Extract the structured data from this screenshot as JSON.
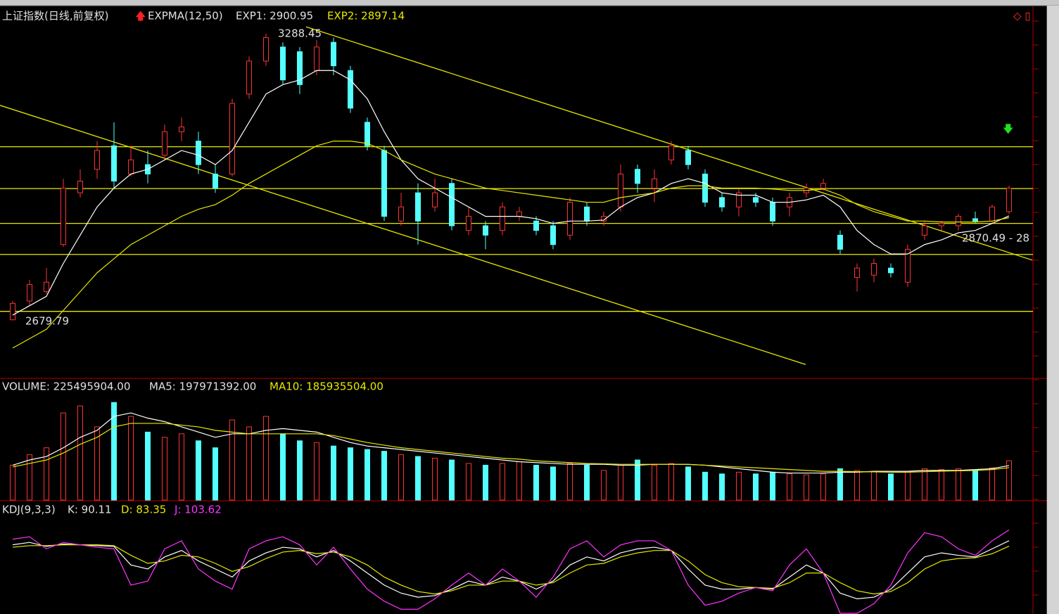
{
  "chart_data": [
    {
      "type": "candlestick",
      "title": "上证指数(日线,前复权)",
      "indicator": "EXPMA(12,50)",
      "legend": [
        "EXP1: 2900.95",
        "EXP2: 2897.14"
      ],
      "annotations": [
        "3288.45",
        "2679.79",
        "2870.49 - 28"
      ],
      "up_color": "#ff3232",
      "down_color": "#54ffff",
      "ylim": [
        2560,
        3345
      ],
      "open": [
        2680,
        2720,
        2740,
        2840,
        2950,
        3000,
        3050,
        2990,
        3010,
        3030,
        3080,
        3060,
        2990,
        2990,
        3160,
        3230,
        3260,
        3250,
        3210,
        3270,
        3210,
        3100,
        3040,
        2890,
        2950,
        2920,
        2970,
        2870,
        2880,
        2870,
        2900,
        2890,
        2880,
        2860,
        2920,
        2890,
        2920,
        3000,
        2960,
        3020,
        3040,
        2990,
        2940,
        2920,
        2940,
        2930,
        2920,
        2950,
        2960,
        2860,
        2770,
        2775,
        2790,
        2760,
        2860,
        2880,
        2880,
        2895,
        2890,
        2910
      ],
      "close": [
        2715,
        2755,
        2760,
        2960,
        2975,
        3040,
        2975,
        3020,
        2990,
        3080,
        3090,
        3010,
        2960,
        3140,
        3230,
        3280,
        3190,
        3180,
        3260,
        3220,
        3130,
        3050,
        2900,
        2920,
        2890,
        2950,
        2880,
        2900,
        2860,
        2920,
        2910,
        2870,
        2840,
        2930,
        2890,
        2900,
        2990,
        2970,
        2980,
        3050,
        3010,
        2930,
        2920,
        2950,
        2930,
        2890,
        2940,
        2960,
        2970,
        2830,
        2790,
        2800,
        2780,
        2830,
        2880,
        2885,
        2900,
        2890,
        2920,
        2960
      ],
      "high": [
        2720,
        2765,
        2790,
        2980,
        3000,
        3060,
        3100,
        3050,
        3040,
        3095,
        3110,
        3080,
        3010,
        3150,
        3240,
        3288.45,
        3270,
        3260,
        3275,
        3280,
        3220,
        3110,
        3050,
        2950,
        2970,
        2980,
        2980,
        2920,
        2890,
        2930,
        2920,
        2900,
        2890,
        2940,
        2930,
        2910,
        3010,
        3010,
        3000,
        3060,
        3050,
        3000,
        2950,
        2960,
        2950,
        2940,
        2950,
        2970,
        2980,
        2870,
        2800,
        2810,
        2800,
        2840,
        2890,
        2890,
        2905,
        2910,
        2925,
        2965
      ],
      "low": [
        2679.79,
        2710,
        2735,
        2835,
        2940,
        2980,
        2960,
        2985,
        2970,
        3020,
        3060,
        2990,
        2950,
        2985,
        3150,
        3220,
        3180,
        3160,
        3200,
        3200,
        3120,
        3040,
        2890,
        2880,
        2840,
        2910,
        2870,
        2860,
        2830,
        2860,
        2890,
        2860,
        2830,
        2850,
        2880,
        2880,
        2910,
        2950,
        2930,
        3010,
        3000,
        2920,
        2910,
        2900,
        2920,
        2880,
        2900,
        2940,
        2955,
        2820,
        2740,
        2760,
        2770,
        2750,
        2850,
        2870,
        2870,
        2885,
        2885,
        2905
      ],
      "series": [
        {
          "name": "EXP1",
          "color": "#ffffff",
          "values": [
            2690,
            2710,
            2730,
            2800,
            2860,
            2920,
            2960,
            2990,
            3000,
            3020,
            3040,
            3030,
            3010,
            3040,
            3100,
            3160,
            3180,
            3190,
            3210,
            3210,
            3190,
            3150,
            3080,
            3020,
            2980,
            2960,
            2940,
            2920,
            2900,
            2900,
            2900,
            2895,
            2885,
            2890,
            2890,
            2892,
            2920,
            2940,
            2950,
            2970,
            2980,
            2970,
            2950,
            2945,
            2945,
            2930,
            2930,
            2935,
            2945,
            2920,
            2870,
            2840,
            2820,
            2820,
            2840,
            2850,
            2865,
            2870,
            2885,
            2900.95
          ]
        },
        {
          "name": "EXP2",
          "color": "#e8e800",
          "values": [
            2620,
            2640,
            2660,
            2700,
            2740,
            2780,
            2810,
            2840,
            2860,
            2880,
            2900,
            2915,
            2925,
            2945,
            2970,
            2990,
            3010,
            3030,
            3050,
            3060,
            3060,
            3055,
            3040,
            3020,
            3005,
            2990,
            2980,
            2970,
            2960,
            2955,
            2950,
            2945,
            2940,
            2935,
            2930,
            2930,
            2940,
            2945,
            2950,
            2960,
            2965,
            2965,
            2960,
            2960,
            2960,
            2958,
            2955,
            2955,
            2958,
            2945,
            2925,
            2910,
            2900,
            2890,
            2890,
            2888,
            2888,
            2888,
            2890,
            2897.14
          ]
        }
      ],
      "hlines": [
        3048,
        2959,
        2885,
        2819,
        2698
      ],
      "trendlines": [
        [
          [
            -0.75,
            3136
          ],
          [
            46.96,
            2585
          ]
        ],
        [
          [
            17.375,
            3303
          ],
          [
            60.375,
            2807
          ]
        ]
      ]
    },
    {
      "type": "bar",
      "title": "VOLUME: 225495904.00",
      "legend": [
        "MA5: 197971392.00",
        "MA10: 185935504.00"
      ],
      "ylim": [
        0,
        690000000
      ],
      "values": [
        200000000,
        260000000,
        300000000,
        500000000,
        540000000,
        420000000,
        560000000,
        480000000,
        390000000,
        360000000,
        380000000,
        340000000,
        300000000,
        460000000,
        420000000,
        480000000,
        380000000,
        340000000,
        330000000,
        310000000,
        300000000,
        290000000,
        280000000,
        260000000,
        250000000,
        240000000,
        230000000,
        210000000,
        200000000,
        210000000,
        220000000,
        200000000,
        190000000,
        210000000,
        200000000,
        170000000,
        200000000,
        230000000,
        200000000,
        210000000,
        190000000,
        160000000,
        150000000,
        160000000,
        150000000,
        160000000,
        150000000,
        145000000,
        150000000,
        180000000,
        170000000,
        165000000,
        150000000,
        165000000,
        180000000,
        175000000,
        180000000,
        170000000,
        185000000,
        225495904
      ],
      "series": [
        {
          "name": "MA5",
          "color": "#ffffff",
          "values": [
            200000000,
            230000000,
            250000000,
            300000000,
            360000000,
            400000000,
            480000000,
            500000000,
            470000000,
            450000000,
            420000000,
            390000000,
            360000000,
            380000000,
            380000000,
            400000000,
            410000000,
            400000000,
            390000000,
            360000000,
            330000000,
            310000000,
            300000000,
            290000000,
            280000000,
            270000000,
            260000000,
            250000000,
            240000000,
            230000000,
            220000000,
            215000000,
            210000000,
            205000000,
            205000000,
            205000000,
            200000000,
            200000000,
            205000000,
            205000000,
            205000000,
            200000000,
            190000000,
            180000000,
            170000000,
            160000000,
            155000000,
            155000000,
            155000000,
            160000000,
            160000000,
            165000000,
            165000000,
            165000000,
            170000000,
            170000000,
            170000000,
            175000000,
            180000000,
            197971392
          ]
        },
        {
          "name": "MA10",
          "color": "#e8e800",
          "values": [
            190000000,
            210000000,
            230000000,
            270000000,
            320000000,
            360000000,
            420000000,
            440000000,
            440000000,
            440000000,
            430000000,
            420000000,
            400000000,
            390000000,
            380000000,
            380000000,
            380000000,
            380000000,
            380000000,
            370000000,
            350000000,
            330000000,
            315000000,
            300000000,
            290000000,
            280000000,
            270000000,
            260000000,
            250000000,
            240000000,
            235000000,
            225000000,
            220000000,
            215000000,
            210000000,
            208000000,
            205000000,
            205000000,
            205000000,
            205000000,
            204000000,
            200000000,
            195000000,
            190000000,
            185000000,
            180000000,
            175000000,
            170000000,
            165000000,
            165000000,
            163000000,
            162000000,
            160000000,
            160000000,
            163000000,
            166000000,
            168000000,
            170000000,
            175000000,
            185935504
          ]
        }
      ]
    },
    {
      "type": "line",
      "title": "KDJ(9,3,3)",
      "legend": [
        "K: 90.11",
        "D: 83.35",
        "J: 103.62"
      ],
      "ylim": [
        0,
        117
      ],
      "series": [
        {
          "name": "K",
          "color": "#ffffff",
          "values": [
            85,
            88,
            83,
            86,
            85,
            84,
            83,
            60,
            55,
            70,
            78,
            65,
            55,
            45,
            65,
            75,
            82,
            80,
            70,
            78,
            65,
            50,
            35,
            25,
            20,
            22,
            30,
            40,
            35,
            45,
            40,
            30,
            40,
            60,
            70,
            65,
            75,
            80,
            82,
            78,
            55,
            35,
            30,
            30,
            32,
            30,
            45,
            60,
            50,
            25,
            18,
            20,
            30,
            50,
            70,
            75,
            72,
            70,
            80,
            90.11
          ]
        },
        {
          "name": "D",
          "color": "#e8e800",
          "values": [
            82,
            84,
            84,
            85,
            85,
            85,
            84,
            72,
            62,
            65,
            72,
            70,
            62,
            52,
            58,
            68,
            76,
            78,
            74,
            76,
            70,
            60,
            45,
            35,
            27,
            24,
            28,
            35,
            35,
            40,
            40,
            35,
            38,
            50,
            60,
            62,
            70,
            75,
            78,
            78,
            65,
            48,
            38,
            33,
            32,
            31,
            38,
            50,
            50,
            38,
            28,
            24,
            27,
            38,
            55,
            65,
            68,
            69,
            74,
            83.35
          ]
        },
        {
          "name": "J",
          "color": "#ff33ff",
          "values": [
            92,
            95,
            80,
            88,
            85,
            82,
            80,
            35,
            40,
            80,
            90,
            55,
            40,
            30,
            80,
            90,
            95,
            85,
            60,
            82,
            55,
            30,
            15,
            5,
            5,
            18,
            35,
            50,
            35,
            55,
            40,
            20,
            45,
            80,
            90,
            70,
            85,
            90,
            90,
            78,
            35,
            10,
            15,
            25,
            32,
            28,
            60,
            80,
            50,
            0,
            0,
            12,
            35,
            75,
            100,
            95,
            80,
            72,
            90,
            103.62
          ]
        }
      ]
    }
  ]
}
